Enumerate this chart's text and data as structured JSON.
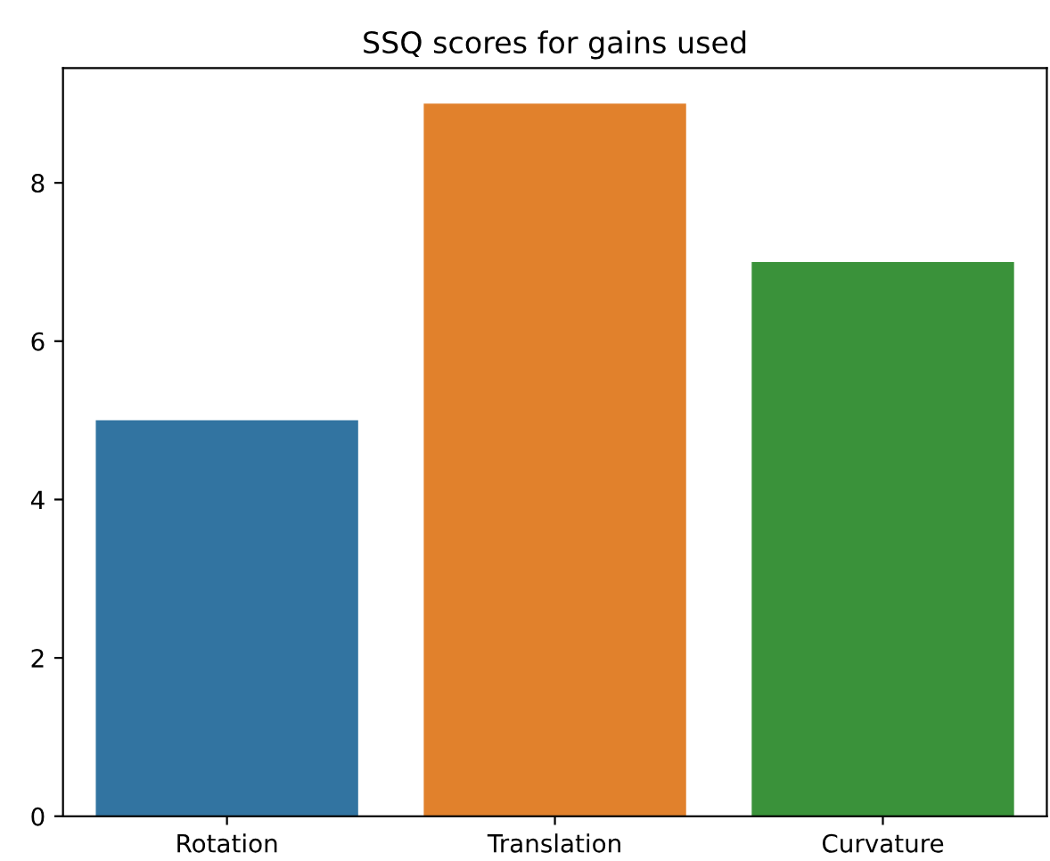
{
  "chart_data": {
    "type": "bar",
    "title": "SSQ scores for gains used",
    "categories": [
      "Rotation",
      "Translation",
      "Curvature"
    ],
    "values": [
      5,
      9,
      7
    ],
    "colors": [
      "#3274a1",
      "#e1812c",
      "#3a923a"
    ],
    "ylim": [
      0,
      9.45
    ],
    "yticks": [
      0,
      2,
      4,
      6,
      8
    ],
    "grid": false
  }
}
